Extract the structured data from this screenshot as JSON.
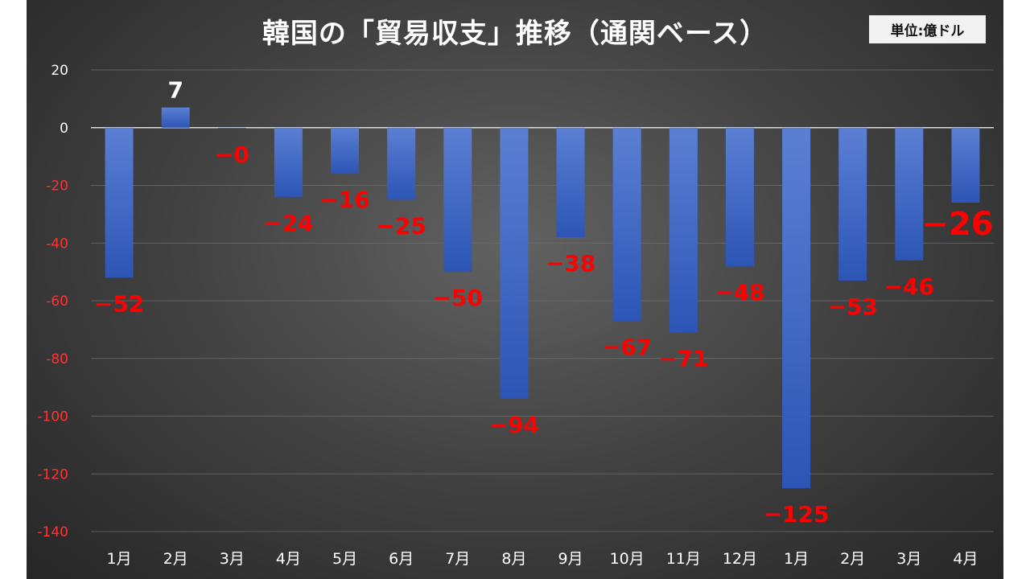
{
  "chart_data": {
    "type": "bar",
    "title": "韓国の「貿易収支」推移（通関ベース）",
    "unit_label": "単位:億ドル",
    "categories": [
      "1月",
      "2月",
      "3月",
      "4月",
      "5月",
      "6月",
      "7月",
      "8月",
      "9月",
      "10月",
      "11月",
      "12月",
      "1月",
      "2月",
      "3月",
      "4月"
    ],
    "values": [
      -52,
      7,
      -0.3,
      -24,
      -16,
      -25,
      -50,
      -94,
      -38,
      -67,
      -71,
      -48,
      -125,
      -53,
      -46,
      -26
    ],
    "data_labels": [
      "−52",
      "7",
      "−0",
      "−24",
      "−16",
      "−25",
      "−50",
      "−94",
      "−38",
      "−67",
      "−71",
      "−48",
      "−125",
      "−53",
      "−46",
      "−26"
    ],
    "y_ticks": [
      "20",
      "0",
      "-20",
      "-40",
      "-60",
      "-80",
      "-100",
      "-120",
      "-140"
    ],
    "ylim": [
      -140,
      20
    ],
    "grid": true,
    "legend": "none",
    "colors": {
      "bar_top": "#5b7fd3",
      "bar_bottom": "#2c55b5",
      "label_negative": "#ff0000",
      "label_positive": "#ffffff",
      "tick_positive": "#ffffff",
      "tick_negative": "#ff3333",
      "category_label": "#ffffff"
    }
  }
}
